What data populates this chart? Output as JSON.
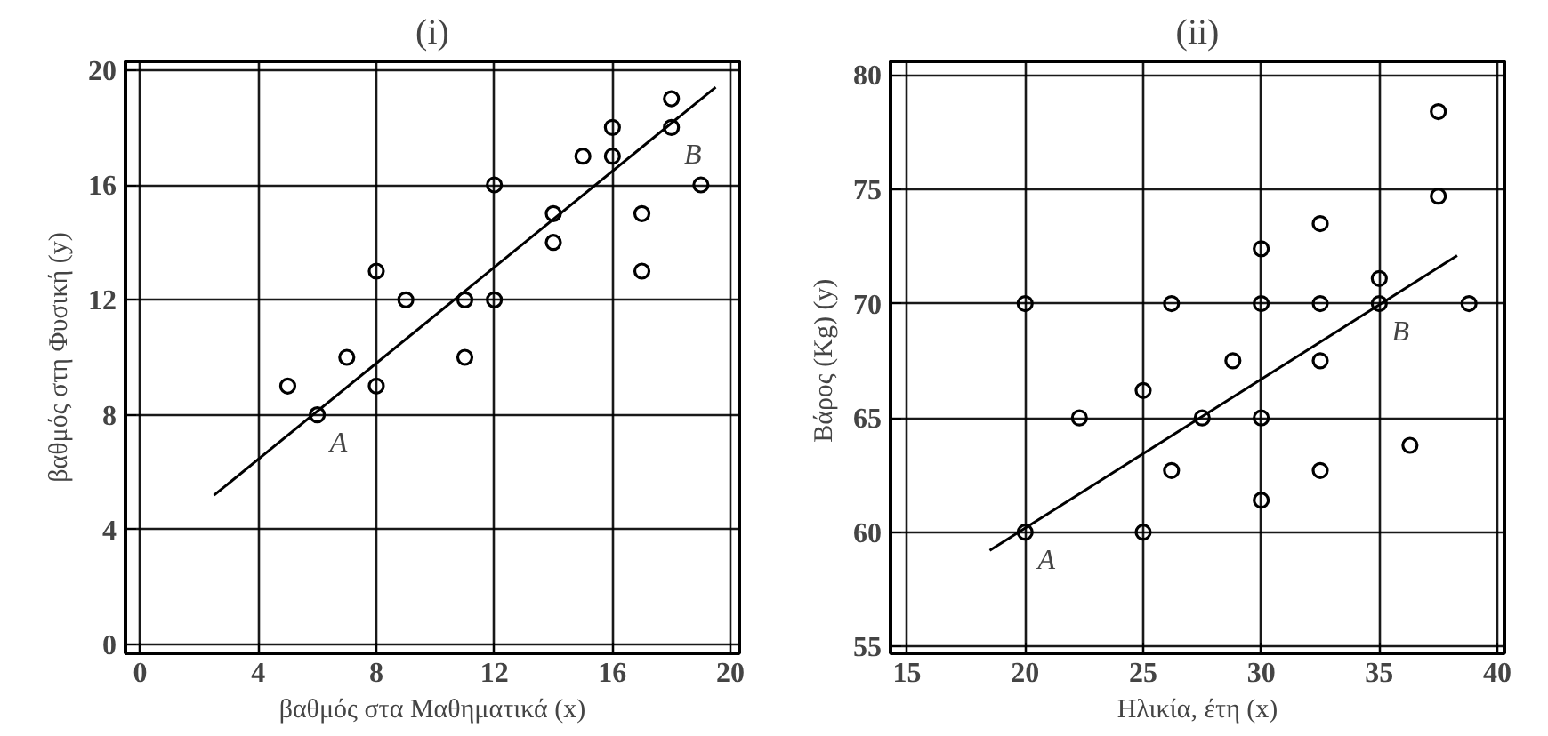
{
  "chart_data": [
    {
      "type": "scatter",
      "title": "(i)",
      "xlabel": "βαθμός στα Μαθηματικά (x)",
      "ylabel": "βαθμός στη Φυσική (y)",
      "xlim": [
        -0.5,
        20.3
      ],
      "ylim": [
        -0.3,
        20.3
      ],
      "xticks": [
        0,
        4,
        8,
        12,
        16,
        20
      ],
      "yticks": [
        0,
        4,
        8,
        12,
        16,
        20
      ],
      "grid": true,
      "marker": "circle",
      "series": [
        {
          "color": "#000000",
          "x": [
            5,
            6,
            7,
            8,
            8,
            9,
            11,
            11,
            12,
            12,
            14,
            14,
            15,
            16,
            16,
            17,
            17,
            18,
            18,
            19
          ],
          "values": [
            9,
            8,
            10,
            13,
            9,
            12,
            12,
            10,
            16,
            12,
            15,
            14,
            17,
            18,
            17,
            15,
            13,
            19,
            18,
            16
          ]
        },
        {
          "type": "line",
          "color": "#000000",
          "line_style": "solid",
          "marker": "none",
          "x": [
            2.5,
            19.5
          ],
          "values": [
            5.2,
            19.4
          ]
        }
      ],
      "annotations": [
        {
          "text": "A",
          "x": 6,
          "y": 8
        },
        {
          "text": "B",
          "x": 18,
          "y": 18
        }
      ]
    },
    {
      "type": "scatter",
      "title": "(ii)",
      "xlabel": "Ηλικία, έτη (x)",
      "ylabel": "Βάρος (Kg)  (y)",
      "xlim": [
        14.3,
        40.3
      ],
      "ylim": [
        54.7,
        80.6
      ],
      "xticks": [
        15,
        20,
        25,
        30,
        35,
        40
      ],
      "yticks": [
        55,
        60,
        65,
        70,
        75,
        80
      ],
      "grid": true,
      "marker": "circle",
      "series": [
        {
          "color": "#000000",
          "x": [
            20,
            20,
            22.3,
            25,
            25,
            26.2,
            26.2,
            27.5,
            28.8,
            30,
            30,
            30,
            30,
            32.5,
            32.5,
            32.5,
            32.5,
            35,
            35,
            36.3,
            37.5,
            37.5,
            38.8
          ],
          "values": [
            70,
            60,
            65,
            66.2,
            60,
            62.7,
            70,
            65,
            67.5,
            72.4,
            70,
            65,
            61.4,
            73.5,
            70,
            67.5,
            62.7,
            71.1,
            70,
            63.8,
            78.4,
            74.7,
            70
          ]
        },
        {
          "type": "line",
          "color": "#000000",
          "line_style": "solid",
          "marker": "none",
          "x": [
            18.5,
            38.3
          ],
          "values": [
            59.2,
            72.1
          ]
        }
      ],
      "annotations": [
        {
          "text": "A",
          "x": 20,
          "y": 60
        },
        {
          "text": "B",
          "x": 35,
          "y": 70
        }
      ]
    }
  ]
}
